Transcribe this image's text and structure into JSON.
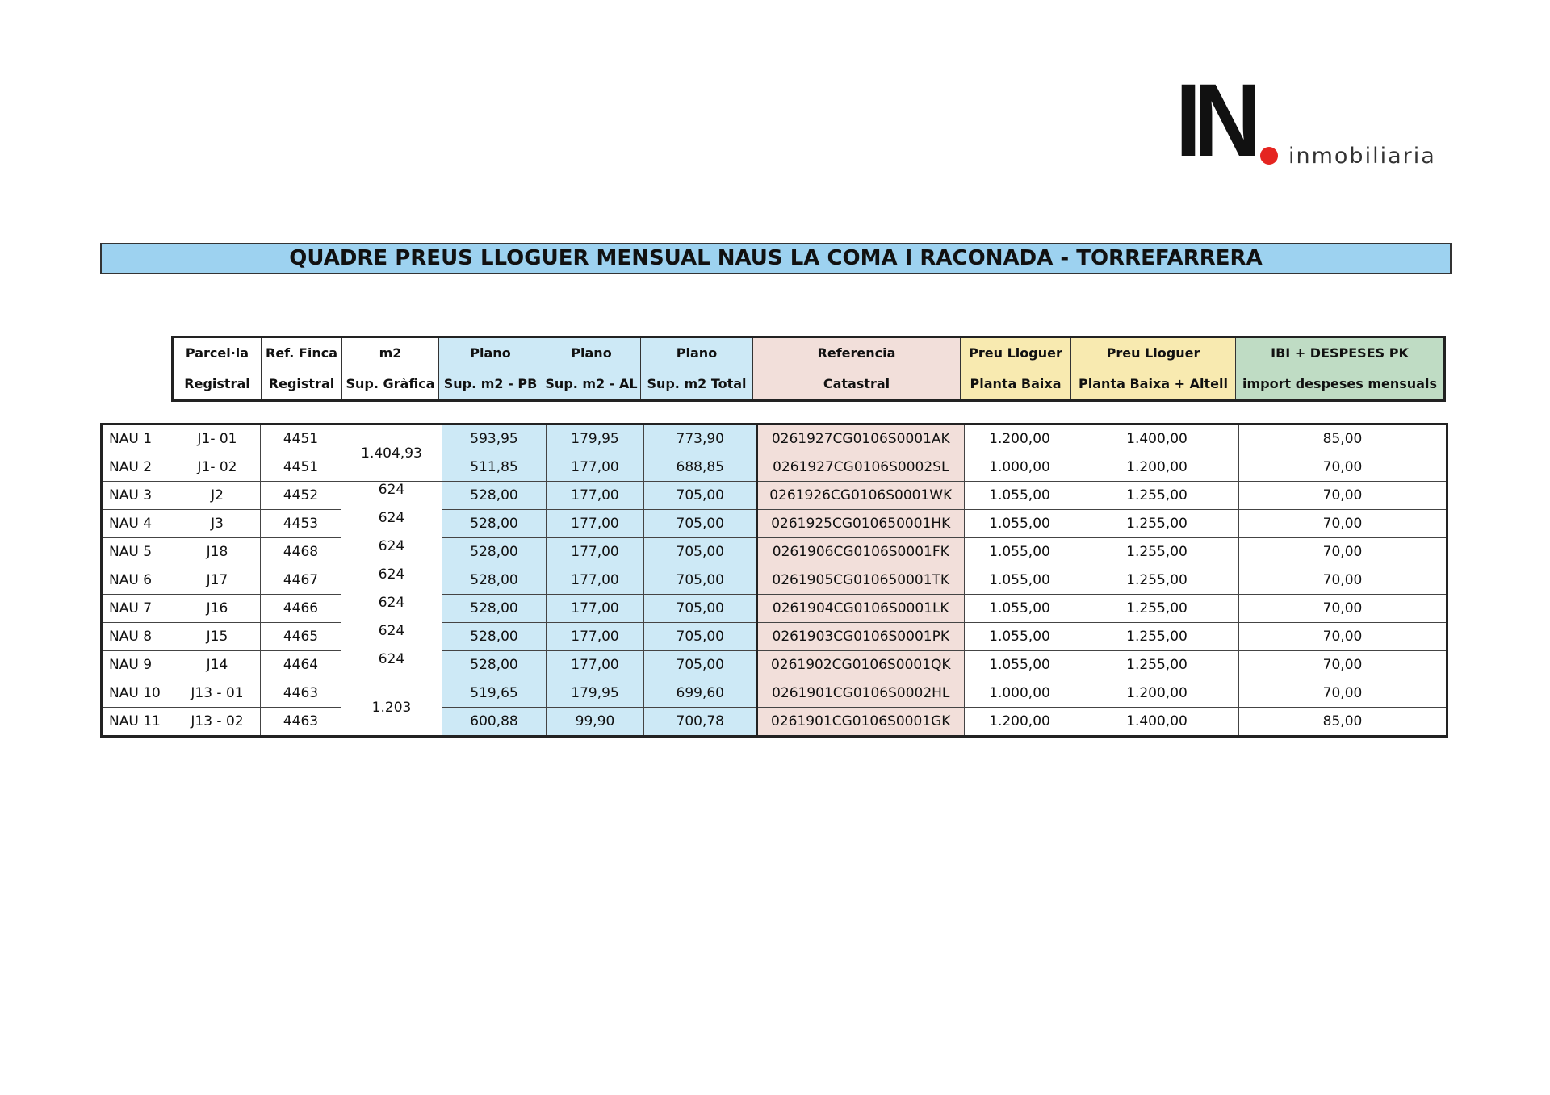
{
  "logo": {
    "mark": "IN",
    "word": "inmobiliaria",
    "dot_color": "#e52521"
  },
  "title": "QUADRE PREUS LLOGUER MENSUAL NAUS LA COMA I RACONADA - TORREFARRERA",
  "header": [
    {
      "line1": "Parcel·la",
      "line2": "Registral"
    },
    {
      "line1": "Ref. Finca",
      "line2": "Registral"
    },
    {
      "line1": "m2",
      "line2": "Sup. Gràfica"
    },
    {
      "line1": "Plano",
      "line2": "Sup. m2 - PB"
    },
    {
      "line1": "Plano",
      "line2": "Sup. m2 - AL"
    },
    {
      "line1": "Plano",
      "line2": "Sup. m2 Total"
    },
    {
      "line1": "Referencia",
      "line2": "Catastral"
    },
    {
      "line1": "Preu Lloguer",
      "line2": "Planta Baixa"
    },
    {
      "line1": "Preu Lloguer",
      "line2": "Planta Baixa + Altell"
    },
    {
      "line1": "IBI + DESPESES PK",
      "line2": "import despeses mensuals"
    }
  ],
  "m2_groups": {
    "nau1_2": "1.404,93",
    "nau3_9": "624",
    "nau10_11": "1.203"
  },
  "rows": [
    {
      "nau": "NAU 1",
      "parcela": "J1- 01",
      "finca": "4451",
      "pb": "593,95",
      "al": "179,95",
      "total": "773,90",
      "cat": "0261927CG0106S0001AK",
      "preu_pb": "1.200,00",
      "preu_alt": "1.400,00",
      "ibi": "85,00"
    },
    {
      "nau": "NAU 2",
      "parcela": "J1- 02",
      "finca": "4451",
      "pb": "511,85",
      "al": "177,00",
      "total": "688,85",
      "cat": "0261927CG0106S0002SL",
      "preu_pb": "1.000,00",
      "preu_alt": "1.200,00",
      "ibi": "70,00"
    },
    {
      "nau": "NAU 3",
      "parcela": "J2",
      "finca": "4452",
      "pb": "528,00",
      "al": "177,00",
      "total": "705,00",
      "cat": "0261926CG0106S0001WK",
      "preu_pb": "1.055,00",
      "preu_alt": "1.255,00",
      "ibi": "70,00"
    },
    {
      "nau": "NAU 4",
      "parcela": "J3",
      "finca": "4453",
      "pb": "528,00",
      "al": "177,00",
      "total": "705,00",
      "cat": "0261925CG010650001HK",
      "preu_pb": "1.055,00",
      "preu_alt": "1.255,00",
      "ibi": "70,00"
    },
    {
      "nau": "NAU 5",
      "parcela": "J18",
      "finca": "4468",
      "pb": "528,00",
      "al": "177,00",
      "total": "705,00",
      "cat": "0261906CG0106S0001FK",
      "preu_pb": "1.055,00",
      "preu_alt": "1.255,00",
      "ibi": "70,00"
    },
    {
      "nau": "NAU 6",
      "parcela": "J17",
      "finca": "4467",
      "pb": "528,00",
      "al": "177,00",
      "total": "705,00",
      "cat": "0261905CG010650001TK",
      "preu_pb": "1.055,00",
      "preu_alt": "1.255,00",
      "ibi": "70,00"
    },
    {
      "nau": "NAU 7",
      "parcela": "J16",
      "finca": "4466",
      "pb": "528,00",
      "al": "177,00",
      "total": "705,00",
      "cat": "0261904CG0106S0001LK",
      "preu_pb": "1.055,00",
      "preu_alt": "1.255,00",
      "ibi": "70,00"
    },
    {
      "nau": "NAU 8",
      "parcela": "J15",
      "finca": "4465",
      "pb": "528,00",
      "al": "177,00",
      "total": "705,00",
      "cat": "0261903CG0106S0001PK",
      "preu_pb": "1.055,00",
      "preu_alt": "1.255,00",
      "ibi": "70,00"
    },
    {
      "nau": "NAU 9",
      "parcela": "J14",
      "finca": "4464",
      "pb": "528,00",
      "al": "177,00",
      "total": "705,00",
      "cat": "0261902CG0106S0001QK",
      "preu_pb": "1.055,00",
      "preu_alt": "1.255,00",
      "ibi": "70,00"
    },
    {
      "nau": "NAU 10",
      "parcela": "J13 - 01",
      "finca": "4463",
      "pb": "519,65",
      "al": "179,95",
      "total": "699,60",
      "cat": "0261901CG0106S0002HL",
      "preu_pb": "1.000,00",
      "preu_alt": "1.200,00",
      "ibi": "70,00"
    },
    {
      "nau": "NAU 11",
      "parcela": "J13 - 02",
      "finca": "4463",
      "pb": "600,88",
      "al": "99,90",
      "total": "700,78",
      "cat": "0261901CG0106S0001GK",
      "preu_pb": "1.200,00",
      "preu_alt": "1.400,00",
      "ibi": "85,00"
    }
  ],
  "colors": {
    "title_bg": "#9dd2f0",
    "plano": "#cde9f6",
    "catastral": "#f2dfda",
    "preu": "#f8eab0",
    "ibi": "#bfdcc4"
  }
}
